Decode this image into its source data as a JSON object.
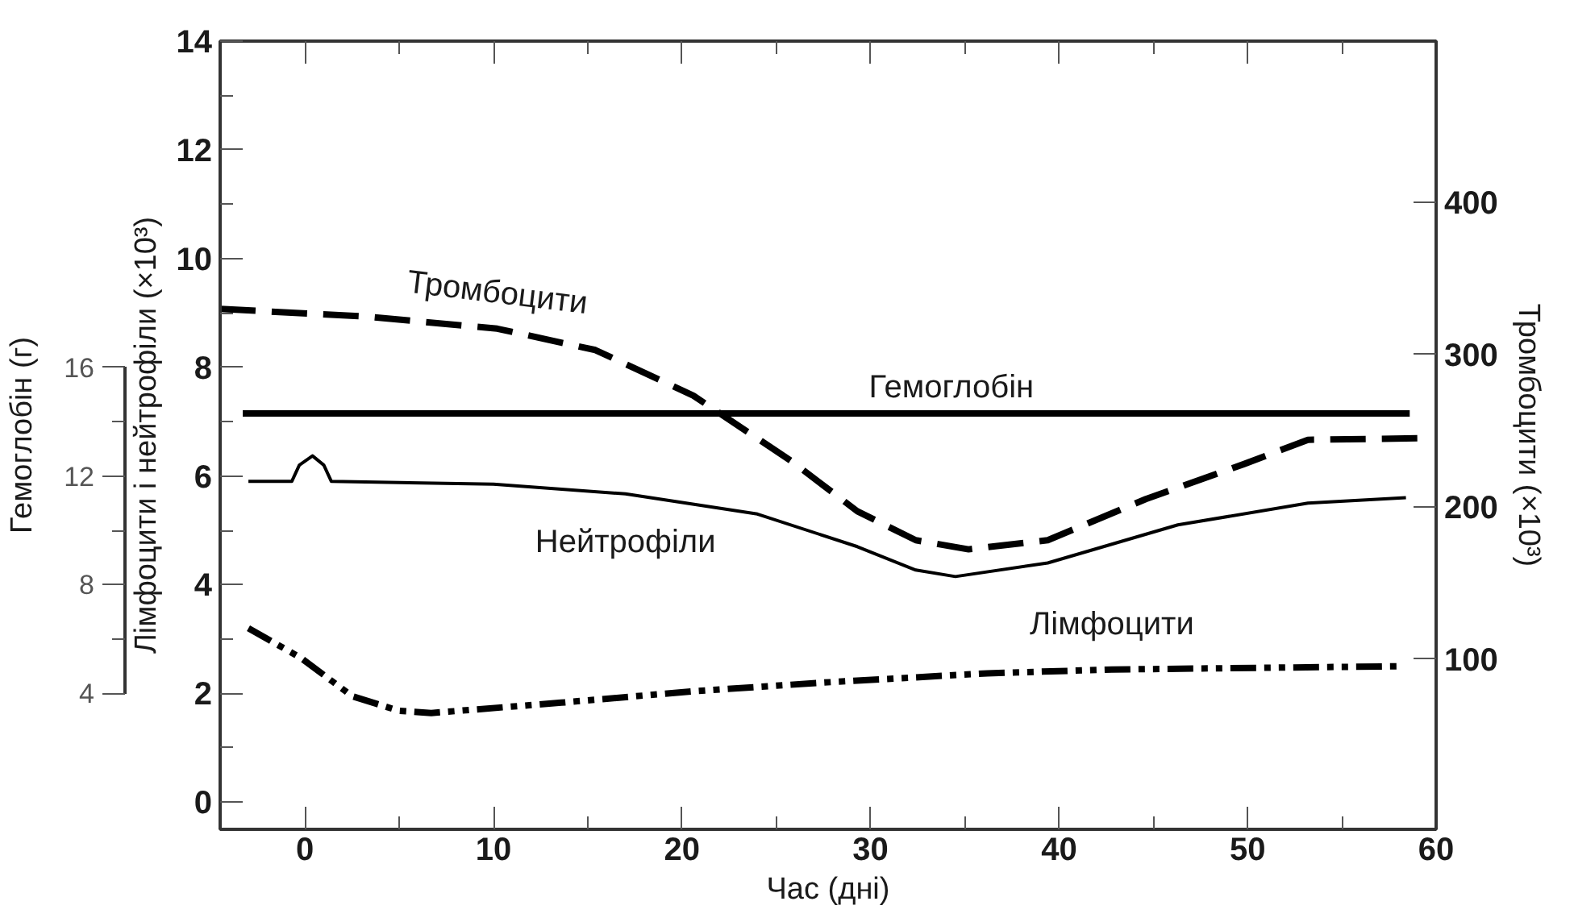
{
  "chart_data": {
    "type": "line",
    "xlabel": "Час (дні)",
    "ylabel": "Лімфоцити і нейтрофіли (×10³)",
    "y2label": "Тромбоцити (×10³)",
    "y3label": "Гемоглобін (г)",
    "xlim": [
      -4.5,
      60
    ],
    "xticks": [
      0,
      10,
      20,
      30,
      40,
      50,
      60
    ],
    "ylim": [
      -0.5,
      14
    ],
    "yticks": [
      0,
      2,
      4,
      6,
      8,
      10,
      12,
      14
    ],
    "y2lim": [
      -12,
      506
    ],
    "y2ticks": [
      100,
      200,
      300,
      400
    ],
    "y3lim": [
      -1,
      28
    ],
    "y3ticks": [
      4,
      8,
      12,
      16
    ],
    "grid": false,
    "series": [
      {
        "name": "Тромбоцити",
        "color": "#000000",
        "axis": "y2",
        "line_style": "dashed",
        "x": [
          -4.5,
          3.2,
          10.2,
          15.4,
          20.6,
          25.8,
          29.3,
          32.4,
          35.2,
          39.4,
          44.6,
          49.8,
          53.2,
          59.2
        ],
        "values": [
          330,
          325,
          317,
          303,
          273,
          230,
          197,
          178,
          172,
          178,
          205,
          228,
          244,
          245
        ]
      },
      {
        "name": "Гемоглобін",
        "color": "#000000",
        "axis": "y3",
        "line_style": "solid",
        "x": [
          -3.3,
          58.6
        ],
        "values": [
          14.3,
          14.3
        ]
      },
      {
        "name": "Нейтрофіли",
        "color": "#000000",
        "line_style": "solid",
        "x": [
          -3,
          -0.7,
          -0.3,
          0.4,
          1.0,
          1.4,
          10,
          17,
          24,
          29.3,
          32.4,
          34.5,
          39.4,
          46.3,
          53.2,
          58.4
        ],
        "values": [
          5.9,
          5.9,
          6.2,
          6.37,
          6.2,
          5.9,
          5.85,
          5.67,
          5.3,
          4.7,
          4.27,
          4.15,
          4.4,
          5.1,
          5.5,
          5.6
        ]
      },
      {
        "name": "Лімфоцити",
        "color": "#000000",
        "line_style": "dashdot",
        "x": [
          -3,
          -0.2,
          2.5,
          5,
          6.7,
          13.6,
          20.6,
          27.5,
          36.2,
          42.8,
          58.1
        ],
        "values": [
          3.2,
          2.65,
          1.95,
          1.68,
          1.64,
          1.83,
          2.04,
          2.2,
          2.37,
          2.44,
          2.5
        ]
      }
    ]
  }
}
